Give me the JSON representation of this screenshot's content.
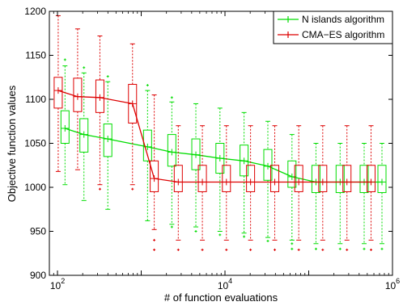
{
  "chart_data": {
    "type": "boxplot-line",
    "title": "",
    "xlabel": "# of function evaluations",
    "ylabel": "Objective function values",
    "xscale": "log",
    "xlim": [
      80,
      1000000
    ],
    "ylim": [
      900,
      1200
    ],
    "x_ticks": [
      {
        "value": 100,
        "base": "10",
        "exp": "2"
      },
      {
        "value": 10000,
        "base": "10",
        "exp": "4"
      },
      {
        "value": 1000000,
        "base": "10",
        "exp": "6"
      }
    ],
    "y_ticks": [
      "900",
      "950",
      "1000",
      "1050",
      "1100",
      "1150",
      "1200"
    ],
    "grid": false,
    "legend_position": "top-right",
    "series": [
      {
        "name": "N islands algorithm",
        "color": "#00dd00",
        "boxes": [
          {
            "x": 123,
            "median": 1067,
            "q1": 1050,
            "q3": 1087,
            "wlo": 1003,
            "whi": 1138,
            "outliers": [
              1145
            ]
          },
          {
            "x": 207,
            "median": 1060,
            "q1": 1040,
            "q3": 1078,
            "wlo": 985,
            "whi": 1130,
            "outliers": [
              1136
            ]
          },
          {
            "x": 399,
            "median": 1055,
            "q1": 1035,
            "q3": 1072,
            "wlo": 975,
            "whi": 1120,
            "outliers": [
              1126
            ]
          },
          {
            "x": 1190,
            "median": 1046,
            "q1": 1030,
            "q3": 1065,
            "wlo": 962,
            "whi": 1110,
            "outliers": [
              1116
            ]
          },
          {
            "x": 2320,
            "median": 1040,
            "q1": 1024,
            "q3": 1060,
            "wlo": 958,
            "whi": 1097,
            "outliers": [
              1102,
              955
            ]
          },
          {
            "x": 4490,
            "median": 1037,
            "q1": 1020,
            "q3": 1055,
            "wlo": 955,
            "whi": 1095,
            "outliers": [
              950
            ]
          },
          {
            "x": 8710,
            "median": 1033,
            "q1": 1016,
            "q3": 1050,
            "wlo": 950,
            "whi": 1090,
            "outliers": [
              946
            ]
          },
          {
            "x": 16900,
            "median": 1030,
            "q1": 1013,
            "q3": 1048,
            "wlo": 948,
            "whi": 1085,
            "outliers": [
              944
            ]
          },
          {
            "x": 32500,
            "median": 1024,
            "q1": 1008,
            "q3": 1043,
            "wlo": 943,
            "whi": 1075,
            "outliers": [
              939
            ]
          },
          {
            "x": 63100,
            "median": 1012,
            "q1": 1000,
            "q3": 1030,
            "wlo": 940,
            "whi": 1060,
            "outliers": [
              936,
              930
            ]
          },
          {
            "x": 122000,
            "median": 1006,
            "q1": 994,
            "q3": 1025,
            "wlo": 936,
            "whi": 1050,
            "outliers": [
              930
            ]
          },
          {
            "x": 237000,
            "median": 1006,
            "q1": 994,
            "q3": 1025,
            "wlo": 936,
            "whi": 1050,
            "outliers": [
              930
            ]
          },
          {
            "x": 459000,
            "median": 1006,
            "q1": 994,
            "q3": 1025,
            "wlo": 936,
            "whi": 1050,
            "outliers": [
              930
            ]
          },
          {
            "x": 749000,
            "median": 1006,
            "q1": 994,
            "q3": 1025,
            "wlo": 936,
            "whi": 1050,
            "outliers": [
              930
            ]
          }
        ]
      },
      {
        "name": "CMA−ES algorithm",
        "color": "#dd0000",
        "boxes": [
          {
            "x": 102,
            "median": 1110,
            "q1": 1090,
            "q3": 1125,
            "wlo": 1018,
            "whi": 1195,
            "outliers": []
          },
          {
            "x": 174,
            "median": 1103,
            "q1": 1086,
            "q3": 1124,
            "wlo": 1020,
            "whi": 1180,
            "outliers": []
          },
          {
            "x": 321,
            "median": 1102,
            "q1": 1085,
            "q3": 1122,
            "wlo": 1003,
            "whi": 1172,
            "outliers": [
              998
            ]
          },
          {
            "x": 787,
            "median": 1095,
            "q1": 1073,
            "q3": 1117,
            "wlo": 1003,
            "whi": 1163,
            "outliers": [
              998
            ]
          },
          {
            "x": 1430,
            "median": 1010,
            "q1": 995,
            "q3": 1030,
            "wlo": 952,
            "whi": 1105,
            "outliers": [
              940,
              929
            ]
          },
          {
            "x": 2770,
            "median": 1006,
            "q1": 995,
            "q3": 1025,
            "wlo": 940,
            "whi": 1070,
            "outliers": [
              929
            ]
          },
          {
            "x": 5370,
            "median": 1006,
            "q1": 995,
            "q3": 1025,
            "wlo": 940,
            "whi": 1070,
            "outliers": [
              929
            ]
          },
          {
            "x": 10400,
            "median": 1006,
            "q1": 995,
            "q3": 1025,
            "wlo": 940,
            "whi": 1070,
            "outliers": [
              929
            ]
          },
          {
            "x": 20200,
            "median": 1006,
            "q1": 995,
            "q3": 1025,
            "wlo": 940,
            "whi": 1070,
            "outliers": [
              929
            ]
          },
          {
            "x": 39300,
            "median": 1006,
            "q1": 995,
            "q3": 1025,
            "wlo": 940,
            "whi": 1070,
            "outliers": [
              929
            ]
          },
          {
            "x": 76000,
            "median": 1006,
            "q1": 995,
            "q3": 1025,
            "wlo": 940,
            "whi": 1070,
            "outliers": [
              929
            ]
          },
          {
            "x": 147000,
            "median": 1006,
            "q1": 995,
            "q3": 1025,
            "wlo": 940,
            "whi": 1070,
            "outliers": [
              929
            ]
          },
          {
            "x": 286000,
            "median": 1006,
            "q1": 995,
            "q3": 1025,
            "wlo": 940,
            "whi": 1070,
            "outliers": [
              929
            ]
          },
          {
            "x": 555000,
            "median": 1006,
            "q1": 995,
            "q3": 1025,
            "wlo": 940,
            "whi": 1070,
            "outliers": [
              929
            ]
          }
        ]
      }
    ]
  }
}
